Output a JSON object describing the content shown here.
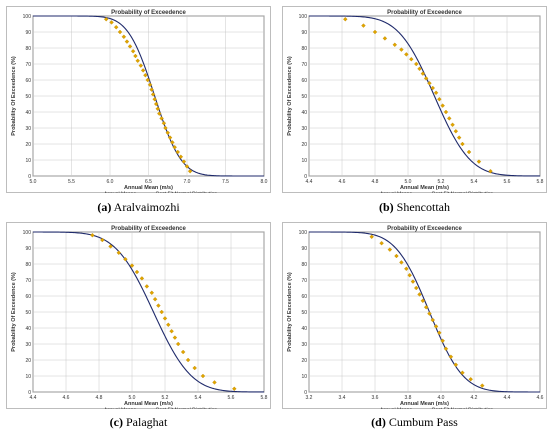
{
  "colors": {
    "accent_points": "#e0a400",
    "fit_line": "#1f2a6b",
    "grid": "#c8c8c8",
    "axes": "#404040"
  },
  "legend": {
    "points": "Annual Means",
    "line": "Best-Fit Normal Distribution"
  },
  "captions": [
    {
      "letter": "(a)",
      "name": "Aralvaimozhi"
    },
    {
      "letter": "(b)",
      "name": "Shencottah"
    },
    {
      "letter": "(c)",
      "name": "Palaghat"
    },
    {
      "letter": "(d)",
      "name": "Cumbum Pass"
    }
  ],
  "chart_data": [
    {
      "type": "scatter",
      "title": "Probability of Exceedence",
      "xlabel": "Annual Mean (m/s)",
      "ylabel": "Probability Of Exceedence (%)",
      "xlim": [
        5.0,
        8.0
      ],
      "xticks": [
        "5.0",
        "5.5",
        "6.0",
        "6.5",
        "7.0",
        "7.5",
        "8.0"
      ],
      "ylim": [
        0,
        100
      ],
      "yticks": [
        "0",
        "10",
        "20",
        "30",
        "40",
        "50",
        "60",
        "70",
        "80",
        "90",
        "100"
      ],
      "grid": true,
      "legend_position": "bottom",
      "fit": {
        "name": "Best-Fit Normal Distribution",
        "mean": 6.58,
        "sd": 0.27
      },
      "series": [
        {
          "name": "Annual Means",
          "x": [
            5.95,
            6.02,
            6.08,
            6.13,
            6.18,
            6.22,
            6.26,
            6.3,
            6.33,
            6.36,
            6.4,
            6.43,
            6.46,
            6.49,
            6.52,
            6.54,
            6.56,
            6.58,
            6.6,
            6.62,
            6.64,
            6.67,
            6.7,
            6.72,
            6.75,
            6.78,
            6.81,
            6.84,
            6.88,
            6.92,
            6.96,
            7.0,
            7.04
          ],
          "y": [
            98,
            96,
            93,
            90,
            87,
            84,
            81,
            78,
            75,
            72,
            69,
            66,
            63,
            60,
            57,
            54,
            51,
            48,
            45,
            42,
            39,
            36,
            33,
            30,
            27,
            24,
            21,
            18,
            15,
            12,
            9,
            6,
            3
          ]
        }
      ]
    },
    {
      "type": "scatter",
      "title": "Probability of Exceedence",
      "xlabel": "Annual Mean (m/s)",
      "ylabel": "Probability Of Exceedence (%)",
      "xlim": [
        4.4,
        5.8
      ],
      "xticks": [
        "4.4",
        "4.6",
        "4.8",
        "5.0",
        "5.2",
        "5.4",
        "5.6",
        "5.8"
      ],
      "ylim": [
        0,
        100
      ],
      "yticks": [
        "0",
        "10",
        "20",
        "30",
        "40",
        "50",
        "60",
        "70",
        "80",
        "90",
        "100"
      ],
      "grid": true,
      "legend_position": "bottom",
      "fit": {
        "name": "Best-Fit Normal Distribution",
        "mean": 5.16,
        "sd": 0.17
      },
      "series": [
        {
          "name": "Annual Means",
          "x": [
            4.62,
            4.73,
            4.8,
            4.86,
            4.92,
            4.96,
            4.99,
            5.02,
            5.05,
            5.07,
            5.09,
            5.11,
            5.13,
            5.15,
            5.17,
            5.19,
            5.21,
            5.23,
            5.25,
            5.27,
            5.29,
            5.31,
            5.33,
            5.37,
            5.43,
            5.5
          ],
          "y": [
            98,
            94,
            90,
            86,
            82,
            79,
            76,
            73,
            70,
            67,
            64,
            61,
            58,
            55,
            52,
            48,
            44,
            40,
            36,
            32,
            28,
            24,
            20,
            15,
            9,
            3
          ]
        }
      ]
    },
    {
      "type": "scatter",
      "title": "Probability of Exceedence",
      "xlabel": "Annual Mean (m/s)",
      "ylabel": "Probability Of Exceedence (%)",
      "xlim": [
        4.4,
        5.8
      ],
      "xticks": [
        "4.4",
        "4.6",
        "4.8",
        "5.0",
        "5.2",
        "5.4",
        "5.6",
        "5.8"
      ],
      "ylim": [
        0,
        100
      ],
      "yticks": [
        "0",
        "10",
        "20",
        "30",
        "40",
        "50",
        "60",
        "70",
        "80",
        "90",
        "100"
      ],
      "grid": true,
      "legend_position": "bottom",
      "fit": {
        "name": "Best-Fit Normal Distribution",
        "mean": 5.13,
        "sd": 0.18
      },
      "series": [
        {
          "name": "Annual Means",
          "x": [
            4.76,
            4.82,
            4.87,
            4.92,
            4.96,
            5.0,
            5.03,
            5.06,
            5.09,
            5.12,
            5.14,
            5.16,
            5.18,
            5.2,
            5.22,
            5.24,
            5.26,
            5.28,
            5.31,
            5.34,
            5.38,
            5.43,
            5.5,
            5.62
          ],
          "y": [
            98,
            95,
            91,
            87,
            83,
            79,
            75,
            71,
            66,
            62,
            58,
            54,
            50,
            46,
            42,
            38,
            34,
            30,
            25,
            20,
            15,
            10,
            6,
            2
          ]
        }
      ]
    },
    {
      "type": "scatter",
      "title": "Probability of Exceedence",
      "xlabel": "Annual Mean (m/s)",
      "ylabel": "Probability Of Exceedence (%)",
      "xlim": [
        3.2,
        4.6
      ],
      "xticks": [
        "3.2",
        "3.4",
        "3.6",
        "3.8",
        "4.0",
        "4.2",
        "4.4",
        "4.6"
      ],
      "ylim": [
        0,
        100
      ],
      "yticks": [
        "0",
        "10",
        "20",
        "30",
        "40",
        "50",
        "60",
        "70",
        "80",
        "90",
        "100"
      ],
      "grid": true,
      "legend_position": "bottom",
      "fit": {
        "name": "Best-Fit Normal Distribution",
        "mean": 3.93,
        "sd": 0.16
      },
      "series": [
        {
          "name": "Annual Means",
          "x": [
            3.58,
            3.64,
            3.69,
            3.73,
            3.76,
            3.79,
            3.81,
            3.83,
            3.85,
            3.87,
            3.89,
            3.91,
            3.93,
            3.95,
            3.97,
            3.99,
            4.01,
            4.03,
            4.06,
            4.09,
            4.13,
            4.18,
            4.25
          ],
          "y": [
            97,
            93,
            89,
            85,
            81,
            77,
            73,
            69,
            65,
            61,
            57,
            53,
            49,
            45,
            41,
            37,
            32,
            27,
            22,
            17,
            12,
            8,
            4
          ]
        }
      ]
    }
  ]
}
